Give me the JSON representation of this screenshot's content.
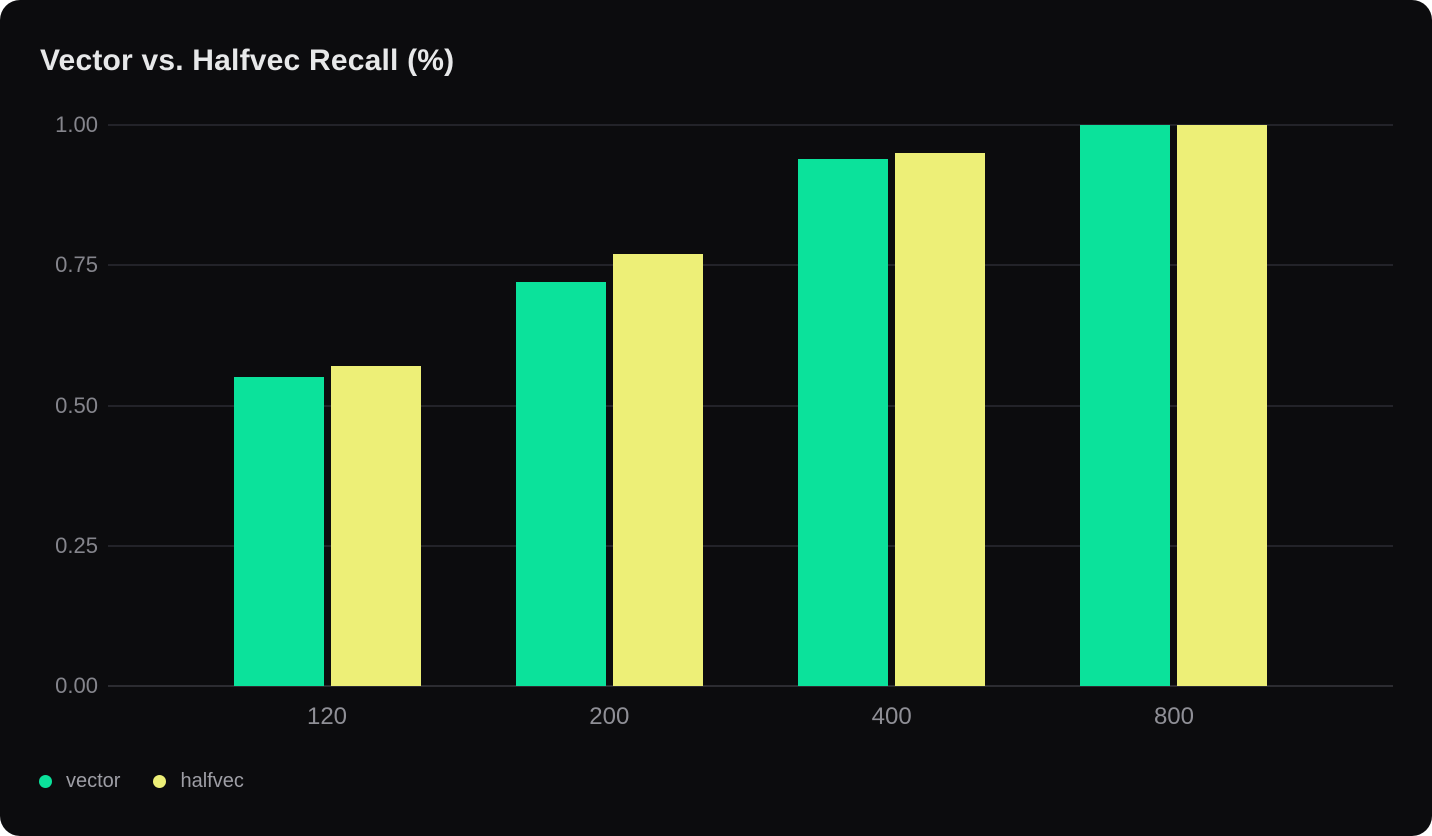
{
  "chart_data": {
    "type": "bar",
    "title": "Vector vs. Halfvec Recall (%)",
    "categories": [
      "120",
      "200",
      "400",
      "800"
    ],
    "series": [
      {
        "name": "vector",
        "color": "#0BE29B",
        "values": [
          0.55,
          0.72,
          0.94,
          1.0
        ]
      },
      {
        "name": "halfvec",
        "color": "#EDEF77",
        "values": [
          0.57,
          0.77,
          0.95,
          1.0
        ]
      }
    ],
    "xlabel": "",
    "ylabel": "",
    "ylim": [
      0,
      1
    ],
    "y_ticks": [
      "0.00",
      "0.25",
      "0.50",
      "0.75",
      "1.00"
    ],
    "grid": true,
    "legend_position": "bottom-left",
    "colors": {
      "card_background": "#0C0C0E",
      "page_background": "#FFFFFF",
      "title_text": "#E7E8E9",
      "grid_line": "#232329",
      "axis_line": "#2C2C31",
      "y_tick_text": "#85858C",
      "x_tick_text": "#8F8F96",
      "legend_text": "#9E9EA5"
    }
  }
}
